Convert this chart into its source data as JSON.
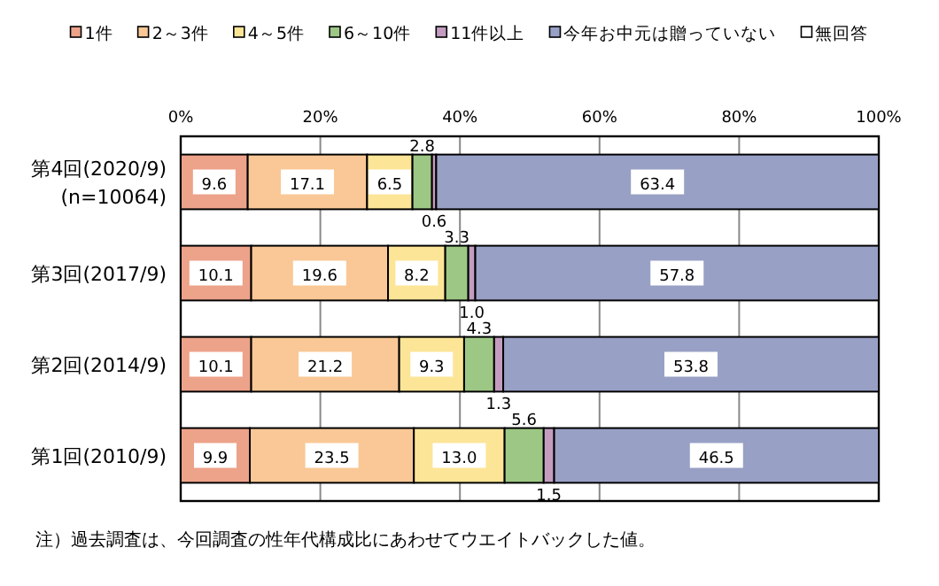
{
  "chart_data": {
    "type": "bar",
    "orientation": "horizontal",
    "stacked": true,
    "categories": [
      "第4回(2020/9)\n(n=10064)",
      "第3回(2017/9)",
      "第2回(2014/9)",
      "第1回(2010/9)"
    ],
    "series": [
      {
        "name": "1件",
        "color": "#eda28a",
        "values": [
          9.6,
          10.1,
          10.1,
          9.9
        ],
        "value_labels": [
          "9.6",
          "10.1",
          "10.1",
          "9.9"
        ]
      },
      {
        "name": "2～3件",
        "color": "#f9c896",
        "values": [
          17.1,
          19.6,
          21.2,
          23.5
        ],
        "value_labels": [
          "17.1",
          "19.6",
          "21.2",
          "23.5"
        ]
      },
      {
        "name": "4～5件",
        "color": "#fde597",
        "values": [
          6.5,
          8.2,
          9.3,
          13.0
        ],
        "value_labels": [
          "6.5",
          "8.2",
          "9.3",
          "13.0"
        ]
      },
      {
        "name": "6～10件",
        "color": "#9dc785",
        "values": [
          2.8,
          3.3,
          4.3,
          5.6
        ],
        "value_labels": [
          "2.8",
          "3.3",
          "4.3",
          "5.6"
        ]
      },
      {
        "name": "11件以上",
        "color": "#c39cc0",
        "values": [
          0.6,
          1.0,
          1.3,
          1.5
        ],
        "value_labels": [
          "0.6",
          "1.0",
          "1.3",
          "1.5"
        ]
      },
      {
        "name": "今年お中元は贈っていない",
        "color": "#98a0c5",
        "values": [
          63.4,
          57.8,
          53.8,
          46.5
        ],
        "value_labels": [
          "63.4",
          "57.8",
          "53.8",
          "46.5"
        ]
      },
      {
        "name": "無回答",
        "color": "#ffffff",
        "values": [
          0,
          0,
          0,
          0
        ]
      }
    ],
    "xlim": [
      0,
      100
    ],
    "xticks": [
      {
        "value": 0,
        "label": "0%"
      },
      {
        "value": 20,
        "label": "20%"
      },
      {
        "value": 40,
        "label": "40%"
      },
      {
        "value": 60,
        "label": "60%"
      },
      {
        "value": 80,
        "label": "80%"
      },
      {
        "value": 100,
        "label": "100%"
      }
    ],
    "grid": "x",
    "legend": "top",
    "annotations": [
      "注）過去調査は、今回調査の性年代構成比にあわせてウエイトバックした値。"
    ]
  }
}
